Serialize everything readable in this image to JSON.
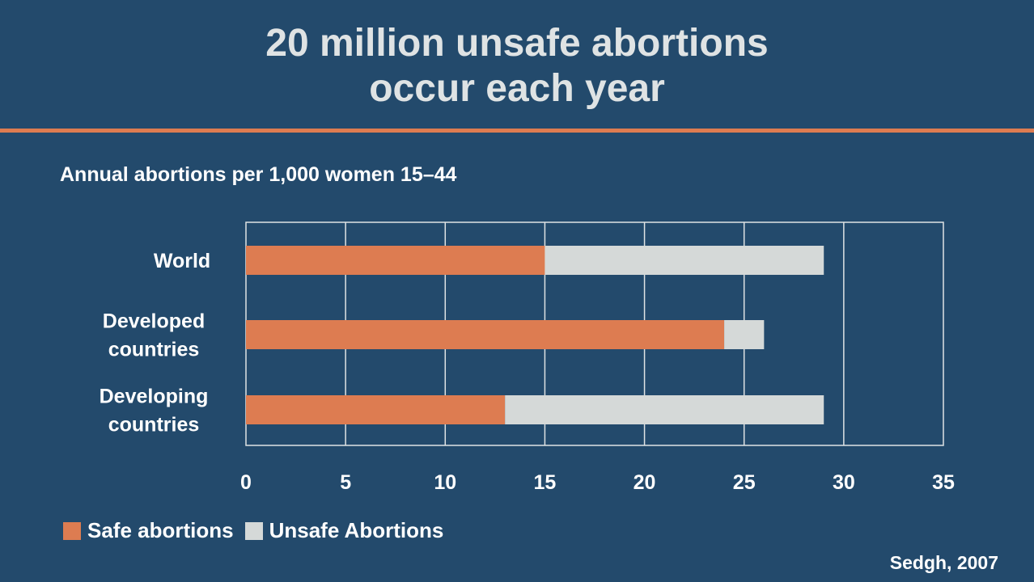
{
  "slide": {
    "title_line1": "20 million unsafe abortions",
    "title_line2": "occur each year",
    "source": "Sedgh, 2007"
  },
  "colors": {
    "background": "#234a6c",
    "accent_divider": "#dd7c51",
    "safe": "#dd7c51",
    "unsafe": "#d5d9d8"
  },
  "chart_data": {
    "type": "bar",
    "orientation": "horizontal",
    "stacked": true,
    "title": "Annual abortions per 1,000 women 15–44",
    "categories": [
      [
        "World"
      ],
      [
        "Developed",
        "countries"
      ],
      [
        "Developing",
        "countries"
      ]
    ],
    "series": [
      {
        "name": "Safe abortions",
        "color": "#dd7c51",
        "values": [
          15,
          24,
          13
        ]
      },
      {
        "name": "Unsafe Abortions",
        "color": "#d5d9d8",
        "values": [
          14,
          2,
          16
        ]
      }
    ],
    "xlim": [
      0,
      35
    ],
    "xticks": [
      0,
      5,
      10,
      15,
      20,
      25,
      30,
      35
    ],
    "grid": true,
    "legend_position": "bottom-left"
  }
}
